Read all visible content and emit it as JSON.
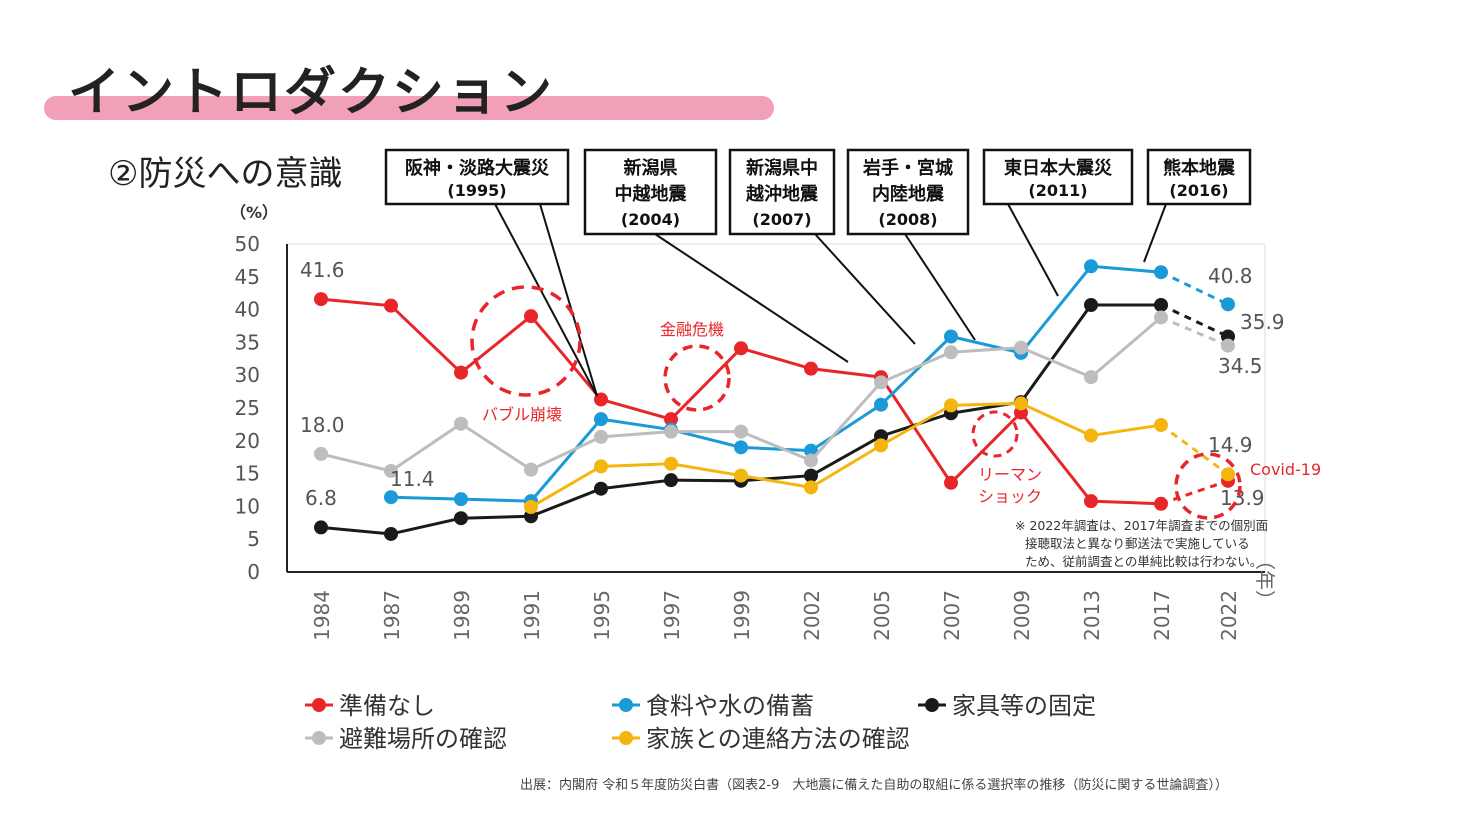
{
  "page": {
    "title": "イントロダクション",
    "subtitle": "②防災への意識",
    "source": "出展：内閣府 令和５年度防災白書（図表2-9　大地震に備えた自助の取組に係る選択率の推移（防災に関する世論調査））"
  },
  "chart_data": {
    "type": "line",
    "y_unit": "（%）",
    "x_unit": "（年）",
    "ylim": [
      0,
      50
    ],
    "yticks": [
      0,
      5,
      10,
      15,
      20,
      25,
      30,
      35,
      40,
      45,
      50
    ],
    "categories": [
      "1984",
      "1987",
      "1989",
      "1991",
      "1995",
      "1997",
      "1999",
      "2002",
      "2005",
      "2007",
      "2009",
      "2013",
      "2017",
      "2022"
    ],
    "series": [
      {
        "name": "準備なし",
        "color": "#e8262a",
        "values": [
          41.6,
          40.6,
          30.4,
          39.0,
          26.3,
          23.3,
          34.1,
          31.0,
          29.7,
          13.6,
          24.3,
          10.8,
          10.4,
          13.9
        ]
      },
      {
        "name": "食料や水の備蓄",
        "color": "#1a9ad6",
        "values": [
          null,
          11.4,
          11.1,
          10.8,
          23.3,
          21.7,
          19.0,
          18.5,
          25.5,
          35.9,
          33.4,
          46.6,
          45.7,
          40.8
        ]
      },
      {
        "name": "家具等の固定",
        "color": "#1a1a1a",
        "values": [
          6.8,
          5.8,
          8.2,
          8.5,
          12.7,
          14.0,
          13.9,
          14.7,
          20.7,
          24.2,
          25.9,
          40.7,
          40.7,
          35.9
        ]
      },
      {
        "name": "避難場所の確認",
        "color": "#bdbdbd",
        "values": [
          18.0,
          15.4,
          22.6,
          15.6,
          20.6,
          21.4,
          21.4,
          17.0,
          28.9,
          33.5,
          34.2,
          29.7,
          38.8,
          34.5
        ]
      },
      {
        "name": "家族との連絡方法の確認",
        "color": "#f5b50f",
        "values": [
          null,
          null,
          null,
          9.9,
          16.1,
          16.5,
          14.7,
          12.9,
          19.3,
          25.4,
          25.7,
          20.8,
          22.4,
          14.9
        ]
      }
    ],
    "value_labels": [
      "41.6",
      "18.0",
      "11.4",
      "6.8",
      "40.8",
      "35.9",
      "34.5",
      "14.9",
      "13.9"
    ],
    "events": [
      {
        "label": "阪神・淡路大震災",
        "year": "(1995)"
      },
      {
        "label": "新潟県",
        "label2": "中越地震",
        "year": "(2004)"
      },
      {
        "label": "新潟県中",
        "label2": "越沖地震",
        "year": "(2007)"
      },
      {
        "label": "岩手・宮城",
        "label2": "内陸地震",
        "year": "(2008)"
      },
      {
        "label": "東日本大震災",
        "year": "(2011)"
      },
      {
        "label": "熊本地震",
        "year": "(2016)"
      }
    ],
    "annotations": {
      "bubble": "バブル崩壊",
      "finance": "金融危機",
      "lehman1": "リーマン",
      "lehman2": "ショック",
      "covid": "Covid-19"
    },
    "note": [
      "※ 2022年調査は、2017年調査までの個別面",
      "接聴取法と異なり郵送法で実施している",
      "ため、従前調査との単純比較は行わない。"
    ]
  }
}
